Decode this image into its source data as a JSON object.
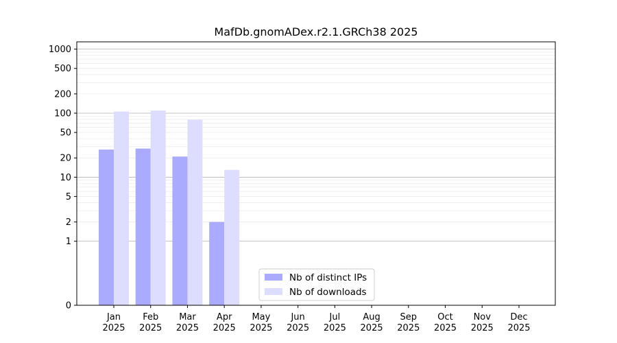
{
  "chart_data": {
    "type": "bar",
    "title": "MafDb.gnomADex.r2.1.GRCh38 2025",
    "xlabel": "",
    "ylabel": "",
    "y_scale": "symlog",
    "ylim": [
      0,
      1300
    ],
    "y_ticks": [
      0,
      1,
      2,
      5,
      10,
      20,
      50,
      100,
      200,
      500,
      1000
    ],
    "grid": "horizontal",
    "legend_position": "bottom-center",
    "categories": [
      {
        "month": "Jan",
        "year": "2025"
      },
      {
        "month": "Feb",
        "year": "2025"
      },
      {
        "month": "Mar",
        "year": "2025"
      },
      {
        "month": "Apr",
        "year": "2025"
      },
      {
        "month": "May",
        "year": "2025"
      },
      {
        "month": "Jun",
        "year": "2025"
      },
      {
        "month": "Jul",
        "year": "2025"
      },
      {
        "month": "Aug",
        "year": "2025"
      },
      {
        "month": "Sep",
        "year": "2025"
      },
      {
        "month": "Oct",
        "year": "2025"
      },
      {
        "month": "Nov",
        "year": "2025"
      },
      {
        "month": "Dec",
        "year": "2025"
      }
    ],
    "series": [
      {
        "name": "Nb of distinct IPs",
        "color": "#aaaaff",
        "values": [
          27,
          28,
          21,
          2,
          0,
          0,
          0,
          0,
          0,
          0,
          0,
          0
        ]
      },
      {
        "name": "Nb of downloads",
        "color": "#ddddff",
        "values": [
          106,
          110,
          79,
          13,
          0,
          0,
          0,
          0,
          0,
          0,
          0,
          0
        ]
      }
    ]
  }
}
